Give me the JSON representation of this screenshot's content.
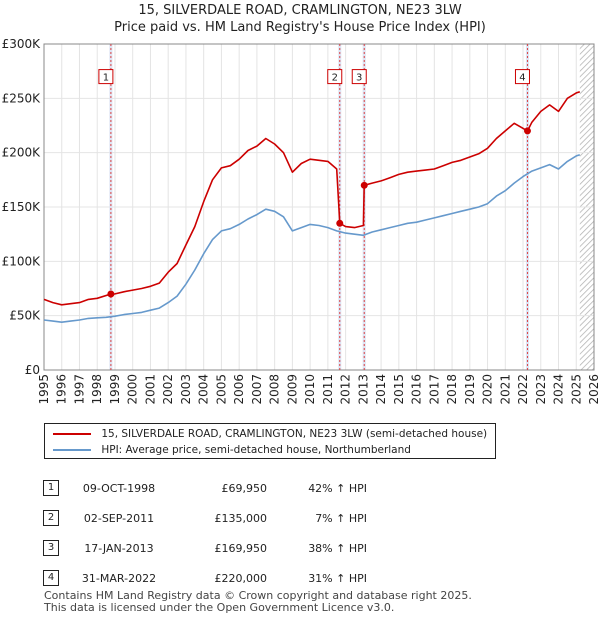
{
  "title_line1": "15, SILVERDALE ROAD, CRAMLINGTON, NE23 3LW",
  "title_line2": "Price paid vs. HM Land Registry's House Price Index (HPI)",
  "chart_data": {
    "type": "line",
    "xlim": [
      1995,
      2026
    ],
    "ylim": [
      0,
      300000
    ],
    "y_ticks": [
      0,
      50000,
      100000,
      150000,
      200000,
      250000,
      300000
    ],
    "y_tick_labels": [
      "£0",
      "£50K",
      "£100K",
      "£150K",
      "£200K",
      "£250K",
      "£300K"
    ],
    "x_ticks": [
      1995,
      1996,
      1997,
      1998,
      1999,
      2000,
      2001,
      2002,
      2003,
      2004,
      2005,
      2006,
      2007,
      2008,
      2009,
      2010,
      2011,
      2012,
      2013,
      2014,
      2015,
      2016,
      2017,
      2018,
      2019,
      2020,
      2021,
      2022,
      2023,
      2024,
      2025,
      2026
    ],
    "x_tick_labels": [
      "1995",
      "1996",
      "1997",
      "1998",
      "1999",
      "2000",
      "2001",
      "2002",
      "2003",
      "2004",
      "2005",
      "2006",
      "2007",
      "2008",
      "2009",
      "2010",
      "2011",
      "2012",
      "2013",
      "2014",
      "2015",
      "2016",
      "2017",
      "2018",
      "2019",
      "2020",
      "2021",
      "2022",
      "2023",
      "2024",
      "2025",
      "2026"
    ],
    "data_end_x": 2025.2,
    "series": [
      {
        "name": "15, SILVERDALE ROAD, CRAMLINGTON, NE23 3LW (semi-detached house)",
        "color": "#cc0000",
        "points": [
          [
            1995.0,
            65000
          ],
          [
            1995.5,
            62000
          ],
          [
            1996.0,
            60000
          ],
          [
            1996.5,
            61000
          ],
          [
            1997.0,
            62000
          ],
          [
            1997.5,
            65000
          ],
          [
            1998.0,
            66000
          ],
          [
            1998.77,
            69950
          ],
          [
            1999.0,
            70000
          ],
          [
            1999.5,
            72000
          ],
          [
            2000.0,
            73500
          ],
          [
            2000.5,
            75000
          ],
          [
            2001.0,
            77000
          ],
          [
            2001.5,
            80000
          ],
          [
            2002.0,
            90000
          ],
          [
            2002.5,
            98000
          ],
          [
            2003.0,
            115000
          ],
          [
            2003.5,
            132000
          ],
          [
            2004.0,
            155000
          ],
          [
            2004.5,
            175000
          ],
          [
            2005.0,
            186000
          ],
          [
            2005.5,
            188000
          ],
          [
            2006.0,
            194000
          ],
          [
            2006.5,
            202000
          ],
          [
            2007.0,
            206000
          ],
          [
            2007.5,
            213000
          ],
          [
            2008.0,
            208000
          ],
          [
            2008.5,
            200000
          ],
          [
            2009.0,
            182000
          ],
          [
            2009.5,
            190000
          ],
          [
            2010.0,
            194000
          ],
          [
            2010.5,
            193000
          ],
          [
            2011.0,
            192000
          ],
          [
            2011.5,
            185000
          ],
          [
            2011.67,
            135000
          ],
          [
            2012.0,
            132000
          ],
          [
            2012.5,
            131000
          ],
          [
            2013.0,
            133000
          ],
          [
            2013.05,
            169950
          ],
          [
            2013.5,
            172000
          ],
          [
            2014.0,
            174000
          ],
          [
            2014.5,
            177000
          ],
          [
            2015.0,
            180000
          ],
          [
            2015.5,
            182000
          ],
          [
            2016.0,
            183000
          ],
          [
            2016.5,
            184000
          ],
          [
            2017.0,
            185000
          ],
          [
            2017.5,
            188000
          ],
          [
            2018.0,
            191000
          ],
          [
            2018.5,
            193000
          ],
          [
            2019.0,
            196000
          ],
          [
            2019.5,
            199000
          ],
          [
            2020.0,
            204000
          ],
          [
            2020.5,
            213000
          ],
          [
            2021.0,
            220000
          ],
          [
            2021.5,
            227000
          ],
          [
            2022.25,
            220000
          ],
          [
            2022.5,
            228000
          ],
          [
            2023.0,
            238000
          ],
          [
            2023.5,
            244000
          ],
          [
            2024.0,
            238000
          ],
          [
            2024.5,
            250000
          ],
          [
            2025.0,
            255000
          ],
          [
            2025.2,
            256000
          ]
        ]
      },
      {
        "name": "HPI: Average price, semi-detached house, Northumberland",
        "color": "#6699cc",
        "points": [
          [
            1995.0,
            46000
          ],
          [
            1995.5,
            45000
          ],
          [
            1996.0,
            44000
          ],
          [
            1996.5,
            45000
          ],
          [
            1997.0,
            46000
          ],
          [
            1997.5,
            47500
          ],
          [
            1998.0,
            48000
          ],
          [
            1998.5,
            48500
          ],
          [
            1999.0,
            49500
          ],
          [
            1999.5,
            51000
          ],
          [
            2000.0,
            52000
          ],
          [
            2000.5,
            53000
          ],
          [
            2001.0,
            55000
          ],
          [
            2001.5,
            57000
          ],
          [
            2002.0,
            62000
          ],
          [
            2002.5,
            68000
          ],
          [
            2003.0,
            79000
          ],
          [
            2003.5,
            92000
          ],
          [
            2004.0,
            107000
          ],
          [
            2004.5,
            120000
          ],
          [
            2005.0,
            128000
          ],
          [
            2005.5,
            130000
          ],
          [
            2006.0,
            134000
          ],
          [
            2006.5,
            139000
          ],
          [
            2007.0,
            143000
          ],
          [
            2007.5,
            148000
          ],
          [
            2008.0,
            146000
          ],
          [
            2008.5,
            141000
          ],
          [
            2009.0,
            128000
          ],
          [
            2009.5,
            131000
          ],
          [
            2010.0,
            134000
          ],
          [
            2010.5,
            133000
          ],
          [
            2011.0,
            131000
          ],
          [
            2011.5,
            128000
          ],
          [
            2012.0,
            126000
          ],
          [
            2012.5,
            125000
          ],
          [
            2013.0,
            124000
          ],
          [
            2013.5,
            127000
          ],
          [
            2014.0,
            129000
          ],
          [
            2014.5,
            131000
          ],
          [
            2015.0,
            133000
          ],
          [
            2015.5,
            135000
          ],
          [
            2016.0,
            136000
          ],
          [
            2016.5,
            138000
          ],
          [
            2017.0,
            140000
          ],
          [
            2017.5,
            142000
          ],
          [
            2018.0,
            144000
          ],
          [
            2018.5,
            146000
          ],
          [
            2019.0,
            148000
          ],
          [
            2019.5,
            150000
          ],
          [
            2020.0,
            153000
          ],
          [
            2020.5,
            160000
          ],
          [
            2021.0,
            165000
          ],
          [
            2021.5,
            172000
          ],
          [
            2022.0,
            178000
          ],
          [
            2022.5,
            183000
          ],
          [
            2023.0,
            186000
          ],
          [
            2023.5,
            189000
          ],
          [
            2024.0,
            185000
          ],
          [
            2024.5,
            192000
          ],
          [
            2025.0,
            197000
          ],
          [
            2025.2,
            198000
          ]
        ]
      }
    ],
    "sales": [
      {
        "num": "1",
        "x": 1998.77,
        "y": 69950,
        "date": "09-OCT-1998",
        "price": "£69,950",
        "hpi": "42% ↑ HPI"
      },
      {
        "num": "2",
        "x": 2011.67,
        "y": 135000,
        "date": "02-SEP-2011",
        "price": "£135,000",
        "hpi": "7% ↑ HPI"
      },
      {
        "num": "3",
        "x": 2013.05,
        "y": 169950,
        "date": "17-JAN-2013",
        "price": "£169,950",
        "hpi": "38% ↑ HPI"
      },
      {
        "num": "4",
        "x": 2022.25,
        "y": 220000,
        "date": "31-MAR-2022",
        "price": "£220,000",
        "hpi": "31% ↑ HPI"
      }
    ],
    "marker_label_y": 270000
  },
  "legend": {
    "property": "15, SILVERDALE ROAD, CRAMLINGTON, NE23 3LW (semi-detached house)",
    "hpi": "HPI: Average price, semi-detached house, Northumberland",
    "property_color": "#cc0000",
    "hpi_color": "#6699cc"
  },
  "footer_line1": "Contains HM Land Registry data © Crown copyright and database right 2025.",
  "footer_line2": "This data is licensed under the Open Government Licence v3.0."
}
